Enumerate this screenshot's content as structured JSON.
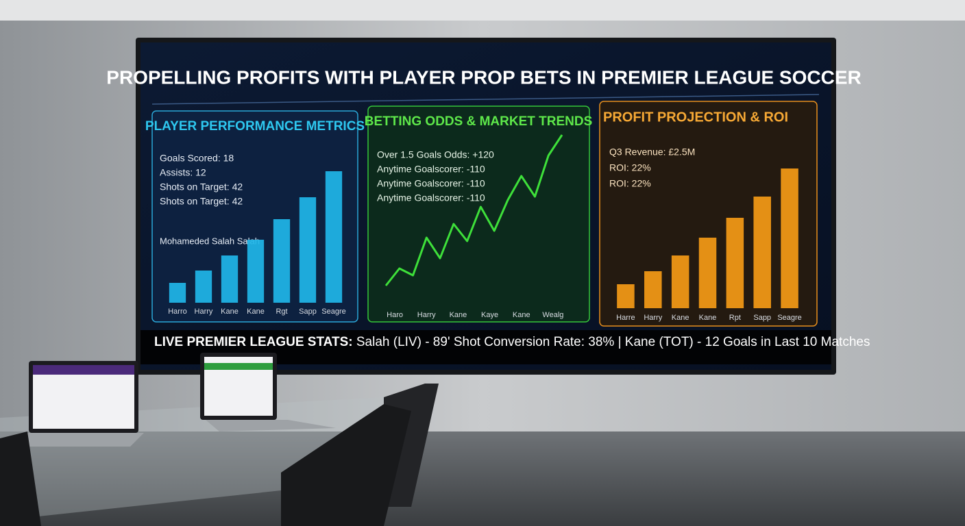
{
  "title": "PROPELLING PROFITS WITH PLAYER PROP BETS IN PREMIER LEAGUE SOCCER",
  "panels": [
    {
      "title": "PLAYER PERFORMANCE METRICS",
      "lines": [
        "Goals Scored: 18",
        "Assists: 12",
        "Shots on Target: 42",
        "Shots on Target: 42"
      ],
      "player": "Mohameded Salah Salah",
      "chart": {
        "type": "bar",
        "color": "#1fb6e8",
        "categories": [
          "Harro",
          "Harry",
          "Kane",
          "Kane",
          "Rgt",
          "Sapp",
          "Seagre"
        ],
        "values": [
          29,
          47,
          69,
          92,
          122,
          154,
          192
        ]
      }
    },
    {
      "title": "BETTING ODDS & MARKET TRENDS",
      "lines": [
        "Over 1.5 Goals Odds: +120",
        "Anytime Goalscorer: -110",
        "Anytime Goalscorer: -110",
        "Anytime Goalscorer: -110"
      ],
      "chart": {
        "type": "line",
        "color": "#3ee03a",
        "categories": [
          "Haro",
          "Harry",
          "Kane",
          "Kaye",
          "Kane",
          "Wealg"
        ],
        "values": [
          5,
          30,
          20,
          75,
          45,
          95,
          70,
          120,
          85,
          130,
          165,
          135,
          195,
          225
        ]
      }
    },
    {
      "title": "PROFIT PROJECTION & ROI",
      "lines": [
        "Q3 Revenue: £2.5M",
        "ROI: 22%",
        "ROI: 22%"
      ],
      "chart": {
        "type": "bar",
        "color": "#f59a16",
        "categories": [
          "Harre",
          "Harry",
          "Kane",
          "Kane",
          "Rpt",
          "Sapp",
          "Seagre"
        ],
        "values": [
          35,
          54,
          77,
          103,
          132,
          163,
          204
        ]
      }
    }
  ],
  "ticker": {
    "label": "LIVE PREMIER LEAGUE STATS:",
    "text": "Salah (LIV) - 89' Shot Conversion Rate: 38% | Kane (TOT) - 12 Goals in Last 10 Matches"
  }
}
